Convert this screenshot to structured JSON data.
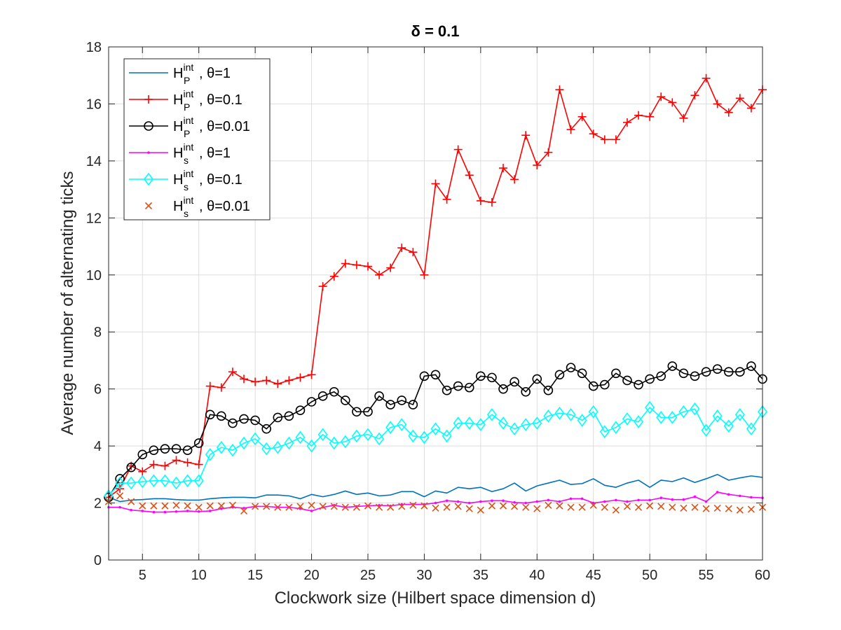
{
  "chart_data": {
    "type": "line",
    "title": "δ = 0.1",
    "xlabel": "Clockwork size (Hilbert space dimension d)",
    "ylabel": "Average number of alternating ticks",
    "xlim": [
      2,
      60
    ],
    "ylim": [
      0,
      18
    ],
    "xticks": [
      5,
      10,
      15,
      20,
      25,
      30,
      35,
      40,
      45,
      50,
      55,
      60
    ],
    "yticks": [
      0,
      2,
      4,
      6,
      8,
      10,
      12,
      14,
      16,
      18
    ],
    "grid": true,
    "legend_position": "top-left",
    "x": [
      2,
      3,
      4,
      5,
      6,
      7,
      8,
      9,
      10,
      11,
      12,
      13,
      14,
      15,
      16,
      17,
      18,
      19,
      20,
      21,
      22,
      23,
      24,
      25,
      26,
      27,
      28,
      29,
      30,
      31,
      32,
      33,
      34,
      35,
      36,
      37,
      38,
      39,
      40,
      41,
      42,
      43,
      44,
      45,
      46,
      47,
      48,
      49,
      50,
      51,
      52,
      53,
      54,
      55,
      56,
      57,
      58,
      59,
      60
    ],
    "series": [
      {
        "name": "H_P^int, θ=1",
        "label_base": "H",
        "label_sub": "P",
        "label_sup": "int",
        "label_rest": ", θ=1",
        "color": "#0072BD",
        "marker": "none",
        "values": [
          2.2,
          2.05,
          2.1,
          2.12,
          2.15,
          2.15,
          2.12,
          2.1,
          2.1,
          2.15,
          2.18,
          2.2,
          2.2,
          2.18,
          2.28,
          2.28,
          2.25,
          2.15,
          2.3,
          2.22,
          2.3,
          2.42,
          2.3,
          2.35,
          2.25,
          2.28,
          2.4,
          2.4,
          2.22,
          2.42,
          2.35,
          2.55,
          2.5,
          2.55,
          2.4,
          2.5,
          2.7,
          2.42,
          2.6,
          2.7,
          2.8,
          2.65,
          2.68,
          2.85,
          2.62,
          2.55,
          2.7,
          2.8,
          2.55,
          2.8,
          2.75,
          2.88,
          2.72,
          2.85,
          3.0,
          2.8,
          2.88,
          2.95,
          2.9
        ]
      },
      {
        "name": "H_P^int, θ=0.1",
        "label_base": "H",
        "label_sub": "P",
        "label_sup": "int",
        "label_rest": ", θ=0.1",
        "color": "#FF0000",
        "marker": "plus",
        "values": [
          2.2,
          2.5,
          3.3,
          3.1,
          3.35,
          3.3,
          3.5,
          3.42,
          3.35,
          6.1,
          6.05,
          6.6,
          6.35,
          6.25,
          6.3,
          6.18,
          6.3,
          6.4,
          6.5,
          9.6,
          9.95,
          10.4,
          10.35,
          10.3,
          10.0,
          10.25,
          10.95,
          10.8,
          10.0,
          13.2,
          12.65,
          14.4,
          13.5,
          12.6,
          12.55,
          13.75,
          13.35,
          14.9,
          13.85,
          14.3,
          16.5,
          15.1,
          15.55,
          14.95,
          14.75,
          14.75,
          15.35,
          15.6,
          15.55,
          16.25,
          16.05,
          15.5,
          16.3,
          16.9,
          16.0,
          15.7,
          16.2,
          15.85,
          16.5
        ]
      },
      {
        "name": "H_P^int, θ=0.01",
        "label_base": "H",
        "label_sub": "P",
        "label_sup": "int",
        "label_rest": ", θ=0.01",
        "color": "#000000",
        "marker": "circle",
        "values": [
          2.2,
          2.85,
          3.25,
          3.7,
          3.85,
          3.9,
          3.9,
          3.85,
          4.1,
          5.1,
          5.05,
          4.8,
          4.95,
          4.9,
          4.6,
          5.0,
          5.05,
          5.25,
          5.55,
          5.75,
          5.9,
          5.6,
          5.2,
          5.2,
          5.75,
          5.45,
          5.6,
          5.45,
          6.45,
          6.5,
          5.95,
          6.1,
          6.05,
          6.45,
          6.4,
          6.0,
          6.25,
          5.9,
          6.35,
          5.95,
          6.5,
          6.75,
          6.55,
          6.1,
          6.15,
          6.55,
          6.3,
          6.15,
          6.35,
          6.45,
          6.8,
          6.55,
          6.45,
          6.6,
          6.7,
          6.6,
          6.6,
          6.8,
          6.35
        ]
      },
      {
        "name": "H_s^int, θ=1",
        "label_base": "H",
        "label_sub": "s",
        "label_sup": "int",
        "label_rest": ", θ=1",
        "color": "#FF00FF",
        "marker": "dot",
        "values": [
          1.85,
          1.85,
          1.75,
          1.72,
          1.68,
          1.68,
          1.7,
          1.72,
          1.7,
          1.72,
          1.8,
          1.85,
          1.82,
          1.88,
          1.88,
          1.85,
          1.85,
          1.8,
          1.72,
          1.85,
          1.92,
          1.85,
          1.88,
          1.9,
          1.92,
          1.9,
          1.95,
          1.95,
          1.95,
          2.0,
          2.08,
          2.05,
          2.0,
          2.05,
          2.08,
          2.08,
          2.02,
          2.0,
          2.05,
          2.1,
          2.05,
          2.15,
          2.15,
          2.0,
          2.05,
          2.1,
          2.05,
          2.1,
          2.1,
          2.18,
          2.12,
          2.12,
          2.22,
          2.05,
          2.38,
          2.3,
          2.25,
          2.2,
          2.18
        ]
      },
      {
        "name": "H_s^int, θ=0.1",
        "label_base": "H",
        "label_sub": "s",
        "label_sup": "int",
        "label_rest": ", θ=0.1",
        "color": "#00FFFF",
        "marker": "diamond",
        "values": [
          2.25,
          2.7,
          2.7,
          2.75,
          2.78,
          2.78,
          2.7,
          2.78,
          2.78,
          3.7,
          3.95,
          3.85,
          4.1,
          4.25,
          3.9,
          3.95,
          4.1,
          4.3,
          4.0,
          4.4,
          4.1,
          4.15,
          4.35,
          4.4,
          4.25,
          4.65,
          4.75,
          4.35,
          4.3,
          4.6,
          4.35,
          4.8,
          4.8,
          4.75,
          5.1,
          4.8,
          4.6,
          4.75,
          4.8,
          5.05,
          5.15,
          5.1,
          4.9,
          5.2,
          4.5,
          4.65,
          4.95,
          4.85,
          5.35,
          5.0,
          5.0,
          5.2,
          5.3,
          4.55,
          5.05,
          4.7,
          5.1,
          4.6,
          5.2
        ]
      },
      {
        "name": "H_s^int, θ=0.01",
        "label_base": "H",
        "label_sub": "s",
        "label_sup": "int",
        "label_rest": ", θ=0.01",
        "color": "#D95319",
        "marker": "x",
        "values": [
          2.05,
          2.25,
          2.05,
          1.9,
          1.9,
          1.9,
          1.92,
          1.9,
          1.85,
          1.9,
          1.9,
          1.92,
          1.72,
          1.88,
          1.88,
          1.85,
          1.85,
          1.88,
          1.92,
          1.88,
          1.88,
          1.85,
          1.85,
          1.9,
          1.85,
          1.85,
          1.88,
          1.92,
          1.9,
          1.82,
          1.85,
          1.88,
          1.8,
          1.75,
          1.9,
          1.9,
          1.88,
          1.85,
          1.8,
          1.92,
          1.9,
          1.85,
          1.85,
          1.92,
          1.85,
          1.75,
          1.88,
          1.85,
          1.9,
          1.88,
          1.85,
          1.82,
          1.85,
          1.8,
          1.82,
          1.8,
          1.75,
          1.78,
          1.85
        ]
      }
    ]
  }
}
